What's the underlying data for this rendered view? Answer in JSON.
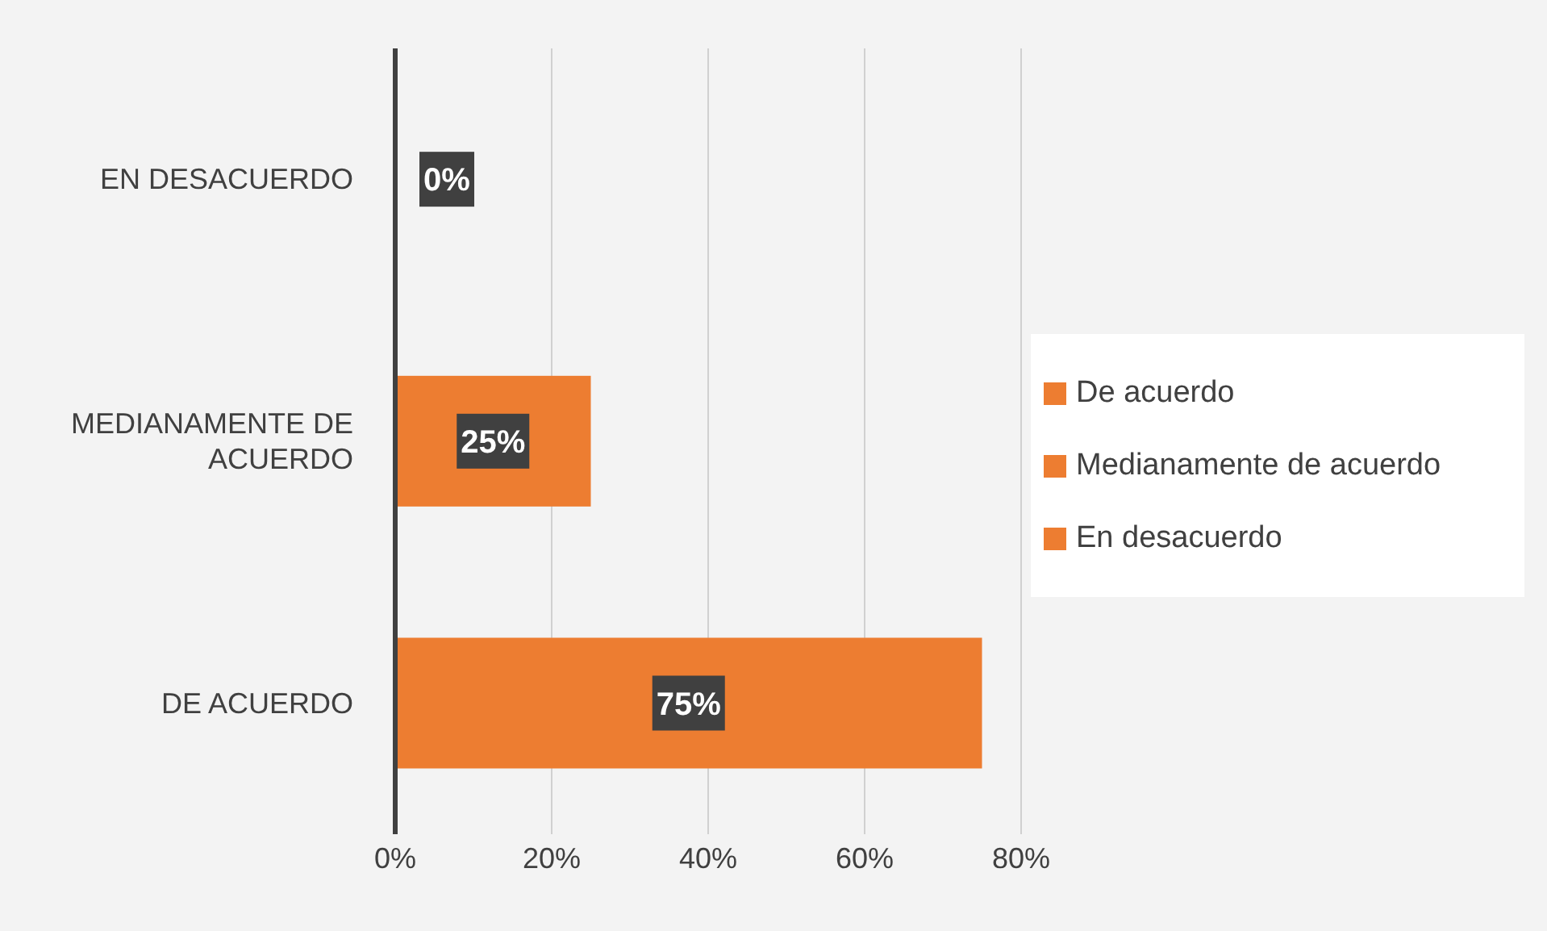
{
  "chart_data": {
    "type": "bar",
    "orientation": "horizontal",
    "stacked": true,
    "categories": [
      "EN DESACUERDO",
      "MEDIANAMENTE DE ACUERDO",
      "DE ACUERDO"
    ],
    "series": [
      {
        "name": "De acuerdo",
        "color": "#ed7d31",
        "values": [
          null,
          null,
          75
        ],
        "value_labels": [
          null,
          null,
          "75%"
        ]
      },
      {
        "name": "Medianamente de acuerdo",
        "color": "#ed7d31",
        "values": [
          null,
          25,
          null
        ],
        "value_labels": [
          null,
          "25%",
          null
        ]
      },
      {
        "name": "En desacuerdo",
        "color": "#ed7d31",
        "values": [
          0,
          null,
          null
        ],
        "value_labels": [
          "0%",
          null,
          null
        ]
      }
    ],
    "xlim": [
      0,
      80
    ],
    "xticks": [
      {
        "value": 0,
        "label": "0%"
      },
      {
        "value": 20,
        "label": "20%"
      },
      {
        "value": 40,
        "label": "40%"
      },
      {
        "value": 60,
        "label": "60%"
      },
      {
        "value": 80,
        "label": "80%"
      }
    ],
    "grid": "x",
    "legend": "right"
  }
}
